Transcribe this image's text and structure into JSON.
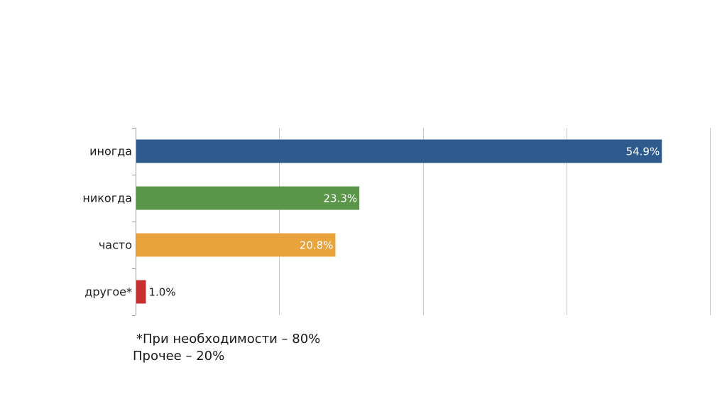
{
  "chart_data": {
    "type": "bar",
    "orientation": "horizontal",
    "categories": [
      "иногда",
      "никогда",
      "часто",
      "другое*"
    ],
    "values": [
      54.9,
      23.3,
      20.8,
      1.0
    ],
    "value_labels": [
      "54.9%",
      "23.3%",
      "20.8%",
      "1.0%"
    ],
    "colors": [
      "#2e5a8e",
      "#5a9648",
      "#e8a33d",
      "#c8302f"
    ],
    "xlim": [
      0,
      60
    ],
    "grid": "vertical",
    "title": "",
    "xlabel": "",
    "ylabel": ""
  },
  "footnote": {
    "line1": "*При необходимости – 80%",
    "line2": "Прочее – 20%"
  }
}
